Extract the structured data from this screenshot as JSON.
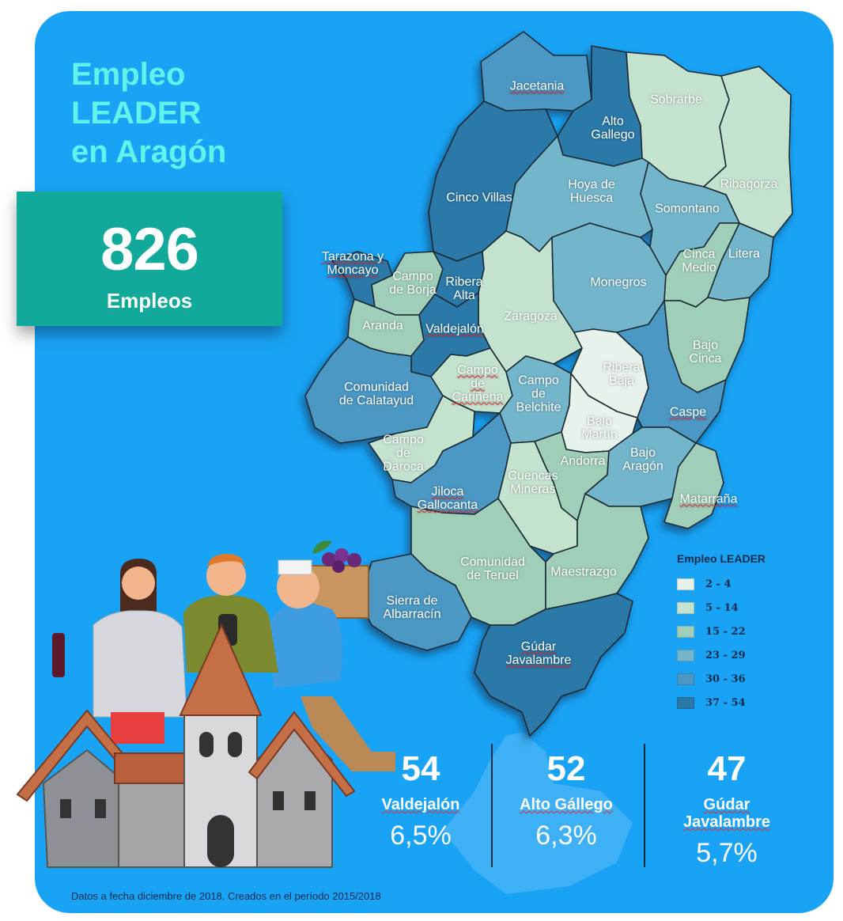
{
  "title_lines": [
    "Empleo",
    "LEADER",
    "en Aragón"
  ],
  "total": {
    "value": "826",
    "label": "Empleos"
  },
  "legend": {
    "title": "Empleo LEADER",
    "classes": [
      {
        "range": "2 - 4",
        "color": "#e6f2ea"
      },
      {
        "range": "5 - 14",
        "color": "#c4e3cf"
      },
      {
        "range": "15 - 22",
        "color": "#9fcfb9"
      },
      {
        "range": "23 - 29",
        "color": "#73b6cb"
      },
      {
        "range": "30 - 36",
        "color": "#4b98c5"
      },
      {
        "range": "37 - 54",
        "color": "#2b79a8"
      }
    ]
  },
  "regions": [
    {
      "name": "Jacetania",
      "underline": true,
      "class": 4
    },
    {
      "name": "Alto\nGallego",
      "underline": false,
      "class": 5
    },
    {
      "name": "Sobrarbe",
      "underline": false,
      "class": 1
    },
    {
      "name": "Ribagorza",
      "underline": false,
      "class": 1
    },
    {
      "name": "Cinco Villas",
      "underline": false,
      "class": 5
    },
    {
      "name": "Hoya de\nHuesca",
      "underline": false,
      "class": 3
    },
    {
      "name": "Somontano",
      "underline": false,
      "class": 3
    },
    {
      "name": "Tarazona y\nMoncayo",
      "underline": true,
      "class": 5
    },
    {
      "name": "Campo\nde Borja",
      "underline": false,
      "class": 2
    },
    {
      "name": "Ribera\nAlta",
      "underline": false,
      "class": 5
    },
    {
      "name": "Zaragoza",
      "underline": false,
      "class": 1
    },
    {
      "name": "Monegros",
      "underline": false,
      "class": 3
    },
    {
      "name": "Cinca\nMedio",
      "underline": false,
      "class": 2
    },
    {
      "name": "Litera",
      "underline": false,
      "class": 3
    },
    {
      "name": "Aranda",
      "underline": false,
      "class": 2
    },
    {
      "name": "Valdejalón",
      "underline": true,
      "class": 5
    },
    {
      "name": "Bajo\nCinca",
      "underline": false,
      "class": 2
    },
    {
      "name": "Comunidad\nde Calatayud",
      "underline": false,
      "class": 4
    },
    {
      "name": "Campo\nde\nCariñena",
      "underline": true,
      "class": 1
    },
    {
      "name": "Campo\nde\nBelchite",
      "underline": false,
      "class": 3
    },
    {
      "name": "Ribera\nBaja",
      "underline": false,
      "class": 0
    },
    {
      "name": "Caspe",
      "underline": true,
      "class": 4
    },
    {
      "name": "Bajo\nMartín",
      "underline": false,
      "class": 0
    },
    {
      "name": "Campo\nde\nDaroca",
      "underline": false,
      "class": 1
    },
    {
      "name": "Andorra",
      "underline": false,
      "class": 2
    },
    {
      "name": "Bajo\nAragón",
      "underline": false,
      "class": 3
    },
    {
      "name": "Jiloca\nGallocanta",
      "underline": true,
      "class": 4
    },
    {
      "name": "Cuencas\nMineras",
      "underline": false,
      "class": 1
    },
    {
      "name": "Matarraña",
      "underline": true,
      "class": 2
    },
    {
      "name": "Comunidad\nde Teruel",
      "underline": false,
      "class": 2
    },
    {
      "name": "Maestrazgo",
      "underline": false,
      "class": 2
    },
    {
      "name": "Sierra de\nAlbarracín",
      "underline": false,
      "class": 4
    },
    {
      "name": "Gúdar\nJavalambre",
      "underline": true,
      "class": 5
    }
  ],
  "top_stats": [
    {
      "value": "54",
      "name": "Valdejalón",
      "percent": "6,5%"
    },
    {
      "value": "52",
      "name": "Alto Gállego",
      "percent": "6,3%"
    },
    {
      "value": "47",
      "name": "Gúdar\nJavalambre",
      "percent": "5,7%"
    }
  ],
  "footnote": "Datos a fecha diciembre de 2018. Creados en el período 2015/2018"
}
